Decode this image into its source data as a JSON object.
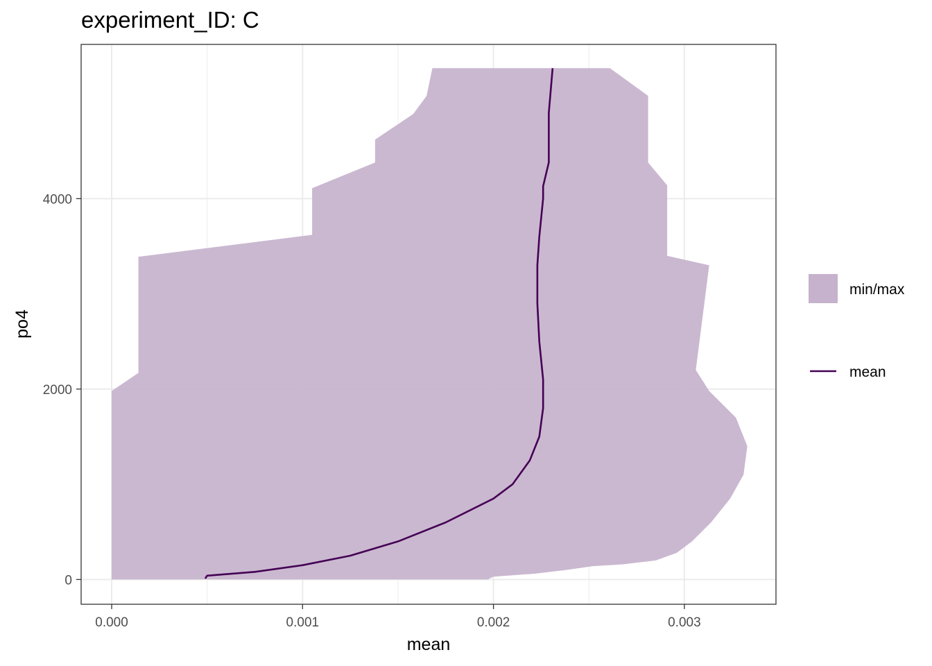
{
  "chart_data": {
    "type": "area",
    "title": "experiment_ID: C",
    "xlabel": "mean",
    "ylabel": "po4",
    "xlim": [
      -0.00016,
      0.00348
    ],
    "ylim": [
      5620,
      -260
    ],
    "y_reversed": true,
    "x_ticks": [
      0,
      0.001,
      0.002,
      0.003
    ],
    "x_tick_labels": [
      "0.000",
      "0.001",
      "0.002",
      "0.003"
    ],
    "y_ticks": [
      0,
      2000,
      4000
    ],
    "y_tick_labels": [
      "0",
      "2000",
      "4000"
    ],
    "grid": true,
    "legend_position": "right",
    "legend": [
      {
        "label": "min/max",
        "kind": "fill"
      },
      {
        "label": "mean",
        "kind": "line"
      }
    ],
    "colors": {
      "fill": "#c6b2cc",
      "line": "#440154",
      "grid": "#ebebeb",
      "border": "#333333"
    },
    "ribbon": {
      "name": "min/max",
      "min": [
        {
          "y": 0,
          "x": 0.0
        },
        {
          "y": 1980,
          "x": 0.0
        },
        {
          "y": 2170,
          "x": 0.00014
        },
        {
          "y": 3390,
          "x": 0.00014
        },
        {
          "y": 3620,
          "x": 0.00105
        },
        {
          "y": 4110,
          "x": 0.00105
        },
        {
          "y": 4380,
          "x": 0.00138
        },
        {
          "y": 4620,
          "x": 0.00138
        },
        {
          "y": 4890,
          "x": 0.00158
        },
        {
          "y": 5080,
          "x": 0.00165
        },
        {
          "y": 5370,
          "x": 0.00168
        }
      ],
      "max": [
        {
          "y": 0,
          "x": 0.00197
        },
        {
          "y": 30,
          "x": 0.002
        },
        {
          "y": 60,
          "x": 0.00221
        },
        {
          "y": 100,
          "x": 0.00238
        },
        {
          "y": 140,
          "x": 0.00252
        },
        {
          "y": 160,
          "x": 0.00268
        },
        {
          "y": 200,
          "x": 0.00285
        },
        {
          "y": 280,
          "x": 0.00296
        },
        {
          "y": 400,
          "x": 0.00304
        },
        {
          "y": 600,
          "x": 0.00314
        },
        {
          "y": 850,
          "x": 0.00324
        },
        {
          "y": 1100,
          "x": 0.00331
        },
        {
          "y": 1400,
          "x": 0.00333
        },
        {
          "y": 1700,
          "x": 0.00327
        },
        {
          "y": 1980,
          "x": 0.00313
        },
        {
          "y": 2200,
          "x": 0.00306
        },
        {
          "y": 3300,
          "x": 0.00313
        },
        {
          "y": 3400,
          "x": 0.00291
        },
        {
          "y": 4140,
          "x": 0.00291
        },
        {
          "y": 4380,
          "x": 0.00281
        },
        {
          "y": 5080,
          "x": 0.00281
        },
        {
          "y": 5370,
          "x": 0.00261
        }
      ]
    },
    "series": [
      {
        "name": "mean",
        "points": [
          {
            "y": 10,
            "x": 0.00049
          },
          {
            "y": 40,
            "x": 0.0005
          },
          {
            "y": 80,
            "x": 0.00075
          },
          {
            "y": 150,
            "x": 0.001
          },
          {
            "y": 250,
            "x": 0.00125
          },
          {
            "y": 400,
            "x": 0.0015
          },
          {
            "y": 600,
            "x": 0.00175
          },
          {
            "y": 850,
            "x": 0.002
          },
          {
            "y": 1000,
            "x": 0.0021
          },
          {
            "y": 1250,
            "x": 0.00219
          },
          {
            "y": 1500,
            "x": 0.00224
          },
          {
            "y": 1800,
            "x": 0.00226
          },
          {
            "y": 2100,
            "x": 0.00226
          },
          {
            "y": 2500,
            "x": 0.00224
          },
          {
            "y": 2900,
            "x": 0.00223
          },
          {
            "y": 3300,
            "x": 0.00223
          },
          {
            "y": 3600,
            "x": 0.00224
          },
          {
            "y": 4000,
            "x": 0.00226
          },
          {
            "y": 4130,
            "x": 0.00226
          },
          {
            "y": 4380,
            "x": 0.00229
          },
          {
            "y": 4900,
            "x": 0.00229
          },
          {
            "y": 5370,
            "x": 0.00231
          }
        ]
      }
    ]
  }
}
